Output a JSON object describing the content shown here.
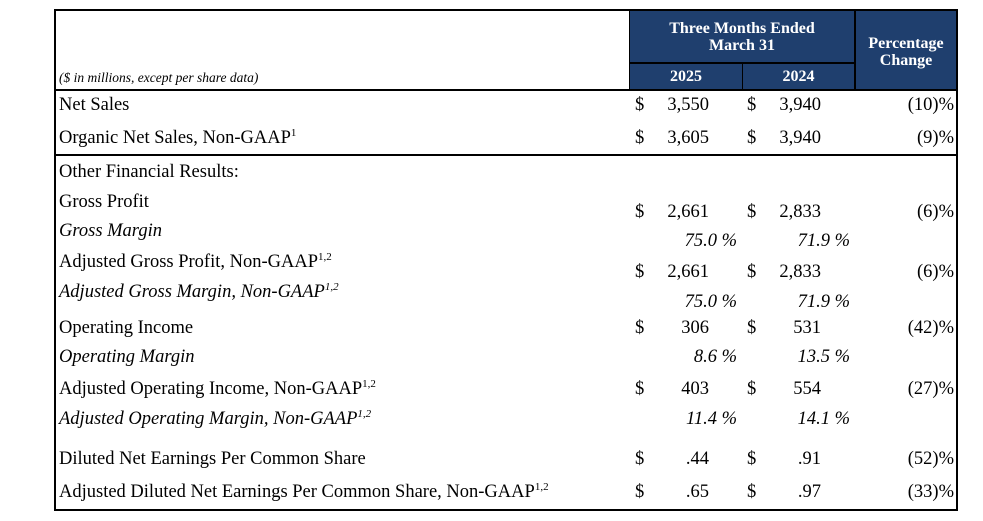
{
  "header": {
    "period_title": "Three Months Ended\nMarch 31",
    "year_current": "2025",
    "year_prior": "2024",
    "pct_header": "Percentage\nChange",
    "units_note": "($ in millions, except per share data)"
  },
  "rows": [
    {
      "label": "Net Sales",
      "sup": "",
      "italic": false,
      "d1": "$",
      "v1": "3,550",
      "d2": "$",
      "v2": "3,940",
      "pct": "(10)%"
    },
    {
      "label": "Organic Net Sales, Non-GAAP",
      "sup": "1",
      "italic": false,
      "d1": "$",
      "v1": "3,605",
      "d2": "$",
      "v2": "3,940",
      "pct": "(9)%"
    },
    {
      "label": "Other Financial Results:",
      "sup": "",
      "italic": false,
      "d1": "",
      "v1": "",
      "d2": "",
      "v2": "",
      "pct": ""
    },
    {
      "label": "Gross Profit",
      "sup": "",
      "italic": false,
      "d1": "$",
      "v1": "2,661",
      "d2": "$",
      "v2": "2,833",
      "pct": "(6)%"
    },
    {
      "label": "Gross Margin",
      "sup": "",
      "italic": true,
      "d1": "",
      "v1": "75.0 %",
      "d2": "",
      "v2": "71.9 %",
      "pct": ""
    },
    {
      "label": "Adjusted Gross Profit, Non-GAAP",
      "sup": "1,2",
      "italic": false,
      "d1": "$",
      "v1": "2,661",
      "d2": "$",
      "v2": "2,833",
      "pct": "(6)%"
    },
    {
      "label": "Adjusted Gross Margin, Non-GAAP",
      "sup": "1,2",
      "italic": true,
      "d1": "",
      "v1": "75.0 %",
      "d2": "",
      "v2": "71.9 %",
      "pct": ""
    },
    {
      "label": "Operating Income",
      "sup": "",
      "italic": false,
      "d1": "$",
      "v1": "306",
      "d2": "$",
      "v2": "531",
      "pct": "(42)%"
    },
    {
      "label": "Operating Margin",
      "sup": "",
      "italic": true,
      "d1": "",
      "v1": "8.6 %",
      "d2": "",
      "v2": "13.5 %",
      "pct": ""
    },
    {
      "label": "Adjusted Operating Income, Non-GAAP",
      "sup": "1,2",
      "italic": false,
      "d1": "$",
      "v1": "403",
      "d2": "$",
      "v2": "554",
      "pct": "(27)%"
    },
    {
      "label": "Adjusted Operating Margin, Non-GAAP",
      "sup": "1,2",
      "italic": true,
      "d1": "",
      "v1": "11.4 %",
      "d2": "",
      "v2": "14.1 %",
      "pct": ""
    },
    {
      "label": "Diluted Net Earnings Per Common Share",
      "sup": "",
      "italic": false,
      "d1": "$",
      "v1": ".44",
      "d2": "$",
      "v2": ".91",
      "pct": "(52)%"
    },
    {
      "label": "Adjusted Diluted Net Earnings Per Common Share, Non-GAAP",
      "sup": "1,2",
      "italic": false,
      "d1": "$",
      "v1": ".65",
      "d2": "$",
      "v2": ".97",
      "pct": "(33)%"
    }
  ]
}
